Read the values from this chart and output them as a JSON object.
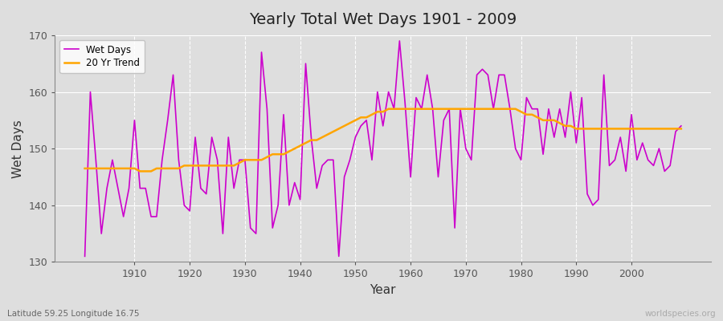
{
  "title": "Yearly Total Wet Days 1901 - 2009",
  "xlabel": "Year",
  "ylabel": "Wet Days",
  "lat_lon_label": "Latitude 59.25 Longitude 16.75",
  "watermark": "worldspecies.org",
  "ylim": [
    130,
    170
  ],
  "yticks": [
    130,
    140,
    150,
    160,
    170
  ],
  "start_year": 1901,
  "end_year": 2009,
  "wet_days_color": "#CC00CC",
  "trend_color": "#FFA500",
  "background_color": "#DEDEDE",
  "plot_bg_color": "#DEDEDE",
  "grid_color": "#FFFFFF",
  "wet_days": [
    131,
    160,
    148,
    135,
    143,
    148,
    143,
    138,
    143,
    155,
    143,
    143,
    138,
    138,
    148,
    155,
    163,
    148,
    140,
    139,
    152,
    143,
    142,
    152,
    148,
    135,
    152,
    143,
    148,
    148,
    136,
    135,
    167,
    157,
    136,
    140,
    156,
    140,
    144,
    141,
    165,
    152,
    143,
    147,
    148,
    148,
    131,
    145,
    148,
    152,
    154,
    155,
    148,
    160,
    154,
    160,
    157,
    169,
    158,
    145,
    159,
    157,
    163,
    157,
    145,
    155,
    157,
    136,
    157,
    150,
    148,
    163,
    164,
    163,
    157,
    163,
    163,
    157,
    150,
    148,
    159,
    157,
    157,
    149,
    157,
    152,
    157,
    152,
    160,
    151,
    159,
    142,
    140,
    141,
    163,
    147,
    148,
    152,
    146,
    156,
    148,
    151,
    148,
    147,
    150,
    146,
    147,
    153,
    154
  ],
  "trend_20yr": [
    146.5,
    146.5,
    146.5,
    146.5,
    146.5,
    146.5,
    146.5,
    146.5,
    146.5,
    146.5,
    146.0,
    146.0,
    146.0,
    146.5,
    146.5,
    146.5,
    146.5,
    146.5,
    147.0,
    147.0,
    147.0,
    147.0,
    147.0,
    147.0,
    147.0,
    147.0,
    147.0,
    147.0,
    147.5,
    148.0,
    148.0,
    148.0,
    148.0,
    148.5,
    149.0,
    149.0,
    149.0,
    149.5,
    150.0,
    150.5,
    151.0,
    151.5,
    151.5,
    152.0,
    152.5,
    153.0,
    153.5,
    154.0,
    154.5,
    155.0,
    155.5,
    155.5,
    156.0,
    156.5,
    156.5,
    157.0,
    157.0,
    157.0,
    157.0,
    157.0,
    157.0,
    157.0,
    157.0,
    157.0,
    157.0,
    157.0,
    157.0,
    157.0,
    157.0,
    157.0,
    157.0,
    157.0,
    157.0,
    157.0,
    157.0,
    157.0,
    157.0,
    157.0,
    157.0,
    156.5,
    156.0,
    156.0,
    155.5,
    155.0,
    155.0,
    155.0,
    154.5,
    154.0,
    154.0,
    153.5,
    153.5,
    153.5,
    153.5,
    153.5,
    153.5,
    153.5,
    153.5,
    153.5,
    153.5,
    153.5,
    153.5,
    153.5,
    153.5,
    153.5,
    153.5,
    153.5,
    153.5,
    153.5,
    153.5
  ]
}
